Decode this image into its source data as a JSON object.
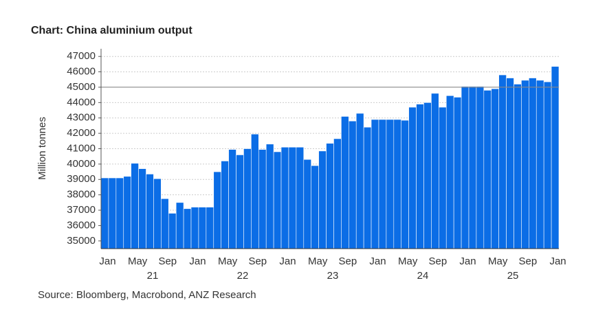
{
  "chart_data": {
    "type": "bar",
    "title": "Chart: China aluminium output",
    "y_label": "Million tonnes",
    "source": "Source:  Bloomberg, Macrobond, ANZ Research",
    "color": "#0b6de6",
    "categories": [
      "Jan",
      null,
      null,
      null,
      "May",
      null,
      null,
      null,
      "Sep",
      null,
      null,
      null,
      "Jan",
      null,
      null,
      null,
      "May",
      null,
      null,
      null,
      "Sep",
      null,
      null,
      null,
      "Jan",
      null,
      null,
      null,
      "May",
      null,
      null,
      null,
      "Sep",
      null,
      null,
      null,
      "Jan",
      null,
      null,
      null,
      "May",
      null,
      null,
      null,
      "Sep",
      null,
      null,
      null,
      "Jan",
      null,
      null,
      null,
      "May",
      null,
      null,
      null,
      "Sep",
      null,
      null,
      null,
      "Jan"
    ],
    "year_labels": [
      {
        "value": 6,
        "label": "21"
      },
      {
        "value": 18,
        "label": "22"
      },
      {
        "value": 30,
        "label": "23"
      },
      {
        "value": 42,
        "label": "24"
      },
      {
        "value": 54,
        "label": "25"
      }
    ],
    "values": [
      39100,
      39100,
      39100,
      39200,
      40050,
      39700,
      39350,
      39050,
      37750,
      36800,
      37500,
      37100,
      37200,
      37200,
      37200,
      39500,
      40200,
      40950,
      40600,
      41000,
      41950,
      40950,
      41300,
      40800,
      41100,
      41100,
      41100,
      40300,
      39900,
      40850,
      41350,
      41650,
      43100,
      42800,
      43300,
      42400,
      42900,
      42900,
      42900,
      42900,
      42850,
      43700,
      43900,
      44000,
      44600,
      43700,
      44450,
      44350,
      45050,
      45050,
      45050,
      44800,
      44900,
      45800,
      45600,
      45200,
      45450,
      45600,
      45450,
      45350,
      46350
    ],
    "ylim": [
      34500,
      47500
    ],
    "yticks": [
      35000,
      36000,
      37000,
      38000,
      39000,
      40000,
      41000,
      42000,
      43000,
      44000,
      45000,
      46000,
      47000
    ],
    "reference_line": 45000,
    "grid": true
  }
}
